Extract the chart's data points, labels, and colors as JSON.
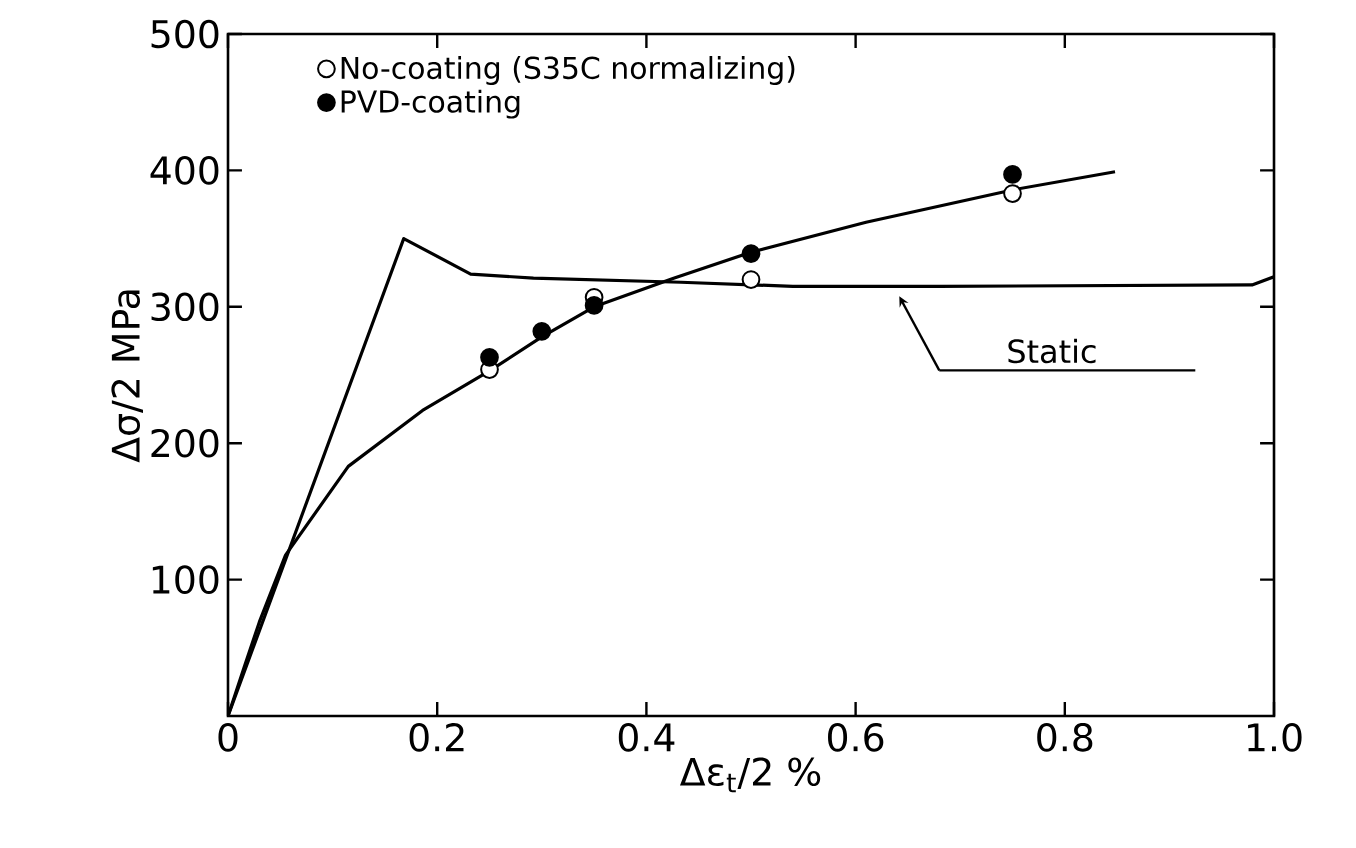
{
  "chart_data": {
    "type": "scatter",
    "xlabel": "Δε$_{t}$/2 %",
    "ylabel": "Δσ/2 MPa",
    "xlim": [
      0,
      1.0
    ],
    "ylim": [
      0,
      500
    ],
    "xticks": [
      0,
      0.2,
      0.4,
      0.6,
      0.8,
      {
        "value": 1.0,
        "label": "1.0"
      }
    ],
    "yticks": [
      100,
      200,
      300,
      400,
      500
    ],
    "legend": "top left",
    "series": [
      {
        "name": "No-coating (S35C normalizing)",
        "marker": "circle",
        "color": "#ffffff",
        "x": [
          0.25,
          0.35,
          0.5,
          0.75
        ],
        "values": [
          254,
          307,
          320,
          383
        ]
      },
      {
        "name": "PVD-coating",
        "marker": "circle",
        "color": "#000000",
        "x": [
          0.25,
          0.3,
          0.35,
          0.5,
          0.75
        ],
        "values": [
          263,
          282,
          301,
          339,
          397
        ]
      },
      {
        "type": "line",
        "marker": "none",
        "color": "#000000",
        "x": [
          0,
          0.016,
          0.03,
          0.055,
          0.115,
          0.186,
          0.25,
          0.3,
          0.35,
          0.426,
          0.5,
          0.61,
          0.752,
          0.848
        ],
        "values": [
          0,
          37,
          69,
          118,
          183,
          224,
          253,
          278,
          300,
          321,
          340,
          362,
          386,
          399
        ]
      },
      {
        "name": "Static",
        "type": "line",
        "marker": "none",
        "color": "#000000",
        "x": [
          0,
          0.168,
          0.232,
          0.292,
          0.433,
          0.54,
          0.68,
          0.979,
          1.0
        ],
        "values": [
          0,
          350,
          324,
          321,
          318,
          315,
          315,
          316,
          322
        ]
      }
    ]
  }
}
